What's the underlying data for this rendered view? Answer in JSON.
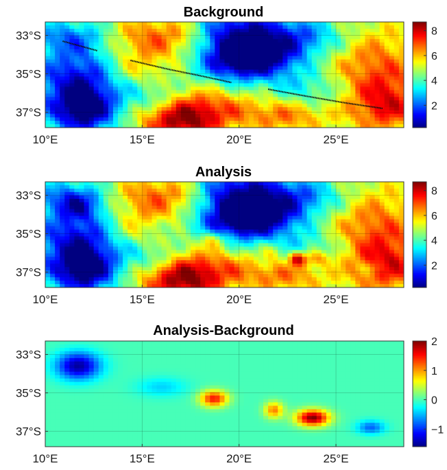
{
  "figure": {
    "colormap": "jet",
    "panel_background": "#7ff77f"
  },
  "chart_data": [
    {
      "type": "heatmap",
      "title": "Background",
      "xticks": [
        "10°E",
        "15°E",
        "20°E",
        "25°E"
      ],
      "xtick_values": [
        10,
        15,
        20,
        25
      ],
      "yticks": [
        "33°S",
        "35°S",
        "37°S"
      ],
      "ytick_values": [
        -33,
        -35,
        -37
      ],
      "xlim": [
        10,
        28.5
      ],
      "ylim": [
        -37.8,
        -32.3
      ],
      "colorbar": {
        "range": [
          0.2,
          8.7
        ],
        "ticks": [
          2,
          4,
          6,
          8
        ]
      },
      "grid": true,
      "blobs": [
        {
          "lon": 11.8,
          "lat": -35.6,
          "sx": 1.6,
          "sy": 1.4,
          "a": -3.6
        },
        {
          "lon": 12.0,
          "lat": -37.0,
          "sx": 1.0,
          "sy": 0.7,
          "a": -2.8
        },
        {
          "lon": 11.4,
          "lat": -33.1,
          "sx": 1.4,
          "sy": 0.6,
          "a": -1.8
        },
        {
          "lon": 16.0,
          "lat": -33.1,
          "sx": 2.2,
          "sy": 0.9,
          "a": 2.8
        },
        {
          "lon": 14.6,
          "lat": -34.8,
          "sx": 1.3,
          "sy": 0.7,
          "a": 1.4
        },
        {
          "lon": 19.6,
          "lat": -33.6,
          "sx": 1.5,
          "sy": 1.6,
          "a": -3.6
        },
        {
          "lon": 22.8,
          "lat": -33.2,
          "sx": 2.4,
          "sy": 0.8,
          "a": -3.2
        },
        {
          "lon": 21.0,
          "lat": -34.3,
          "sx": 1.4,
          "sy": 0.6,
          "a": -2.6
        },
        {
          "lon": 26.5,
          "lat": -33.8,
          "sx": 2.2,
          "sy": 1.4,
          "a": 2.6
        },
        {
          "lon": 27.6,
          "lat": -36.6,
          "sx": 1.5,
          "sy": 1.2,
          "a": 3.4
        },
        {
          "lon": 17.0,
          "lat": -37.5,
          "sx": 1.6,
          "sy": 0.8,
          "a": 3.8
        },
        {
          "lon": 18.7,
          "lat": -36.4,
          "sx": 1.9,
          "sy": 0.9,
          "a": 2.4
        },
        {
          "lon": 22.5,
          "lat": -37.2,
          "sx": 1.7,
          "sy": 0.7,
          "a": 2.4
        },
        {
          "lon": 23.5,
          "lat": -35.8,
          "sx": 1.4,
          "sy": 0.8,
          "a": -1.4
        },
        {
          "lon": 15.8,
          "lat": -36.2,
          "sx": 1.1,
          "sy": 0.6,
          "a": -1.2
        }
      ],
      "base": 4.2,
      "track": [
        [
          10.9,
          -33.3
        ],
        [
          12.7,
          -33.8
        ],
        [
          14.4,
          -34.3
        ],
        [
          16.3,
          -34.75
        ],
        [
          18.0,
          -35.1
        ],
        [
          19.6,
          -35.45
        ],
        [
          21.5,
          -35.8
        ],
        [
          23.4,
          -36.15
        ],
        [
          25.4,
          -36.5
        ],
        [
          27.4,
          -36.8
        ]
      ],
      "track_segments": [
        [
          0,
          1
        ],
        [
          2,
          5
        ],
        [
          6,
          9
        ]
      ]
    },
    {
      "type": "heatmap",
      "title": "Analysis",
      "xticks": [
        "10°E",
        "15°E",
        "20°E",
        "25°E"
      ],
      "xtick_values": [
        10,
        15,
        20,
        25
      ],
      "yticks": [
        "33°S",
        "35°S",
        "37°S"
      ],
      "ytick_values": [
        -33,
        -35,
        -37
      ],
      "xlim": [
        10,
        28.5
      ],
      "ylim": [
        -37.8,
        -32.3
      ],
      "colorbar": {
        "range": [
          0.2,
          8.7
        ],
        "ticks": [
          2,
          4,
          6,
          8
        ]
      },
      "grid": true,
      "base": 4.2,
      "blobs_from": 0,
      "extra_blobs": [
        {
          "lon": 11.7,
          "lat": -33.6,
          "sx": 0.8,
          "sy": 0.5,
          "a": -1.5
        },
        {
          "lon": 16.0,
          "lat": -34.7,
          "sx": 0.9,
          "sy": 0.35,
          "a": -0.4
        },
        {
          "lon": 18.7,
          "lat": -35.3,
          "sx": 0.5,
          "sy": 0.3,
          "a": 1.5
        },
        {
          "lon": 21.8,
          "lat": -35.9,
          "sx": 0.35,
          "sy": 0.3,
          "a": 1.1
        },
        {
          "lon": 23.0,
          "lat": -36.3,
          "sx": 0.3,
          "sy": 0.25,
          "a": 3.0
        },
        {
          "lon": 23.9,
          "lat": -36.3,
          "sx": 0.6,
          "sy": 0.3,
          "a": 1.9
        },
        {
          "lon": 26.8,
          "lat": -36.8,
          "sx": 0.5,
          "sy": 0.25,
          "a": -0.8
        }
      ]
    },
    {
      "type": "heatmap",
      "title": "Analysis-Background",
      "xticks": [
        "10°E",
        "15°E",
        "20°E",
        "25°E"
      ],
      "xtick_values": [
        10,
        15,
        20,
        25
      ],
      "yticks": [
        "33°S",
        "35°S",
        "37°S"
      ],
      "ytick_values": [
        -33,
        -35,
        -37
      ],
      "xlim": [
        10,
        28.5
      ],
      "ylim": [
        -37.8,
        -32.3
      ],
      "colorbar": {
        "range": [
          -1.6,
          2.0
        ],
        "ticks": [
          -1,
          0,
          1,
          2
        ],
        "tick_labels": [
          "−1",
          "0",
          "1",
          "2"
        ]
      },
      "grid": true,
      "base": 0,
      "blobs": [
        {
          "lon": 11.7,
          "lat": -33.6,
          "sx": 0.8,
          "sy": 0.5,
          "a": -1.5
        },
        {
          "lon": 16.0,
          "lat": -34.7,
          "sx": 0.9,
          "sy": 0.35,
          "a": -0.4
        },
        {
          "lon": 18.7,
          "lat": -35.3,
          "sx": 0.5,
          "sy": 0.3,
          "a": 1.5
        },
        {
          "lon": 21.8,
          "lat": -35.9,
          "sx": 0.35,
          "sy": 0.3,
          "a": 1.1
        },
        {
          "lon": 23.8,
          "lat": -36.3,
          "sx": 0.6,
          "sy": 0.3,
          "a": 2.0
        },
        {
          "lon": 26.8,
          "lat": -36.8,
          "sx": 0.5,
          "sy": 0.25,
          "a": -0.8
        }
      ]
    }
  ]
}
